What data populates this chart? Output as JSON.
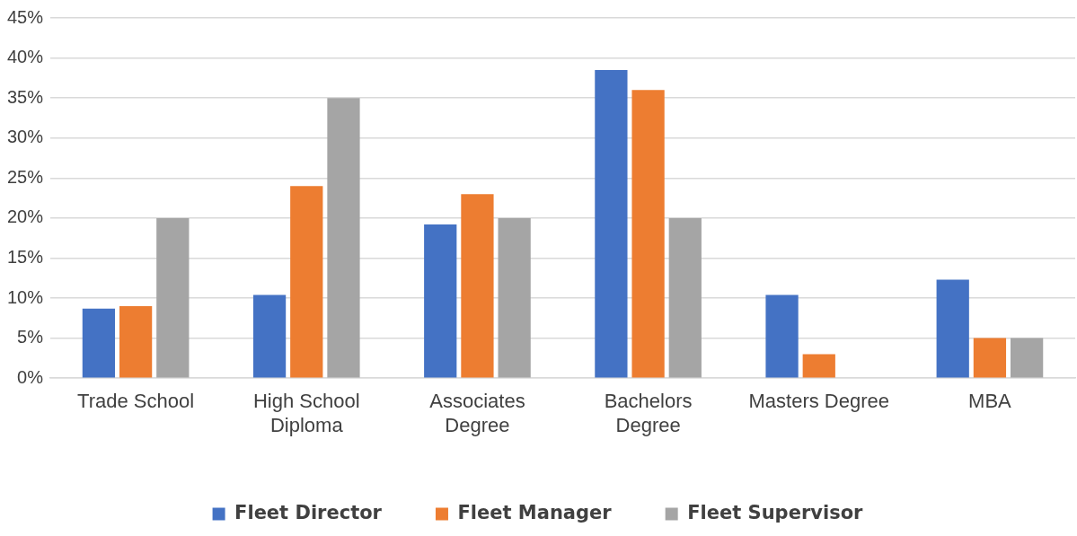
{
  "chart_data": {
    "type": "bar",
    "categories": [
      "Trade School",
      "High School Diploma",
      "Associates Degree",
      "Bachelors Degree",
      "Masters Degree",
      "MBA"
    ],
    "series": [
      {
        "name": "Fleet Director",
        "color": "#4472c4",
        "values": [
          8.7,
          10.4,
          19.2,
          38.5,
          10.4,
          12.3
        ]
      },
      {
        "name": "Fleet Manager",
        "color": "#ed7d31",
        "values": [
          9,
          24,
          23,
          36,
          3,
          5
        ]
      },
      {
        "name": "Fleet Supervisor",
        "color": "#a5a5a5",
        "values": [
          20,
          35,
          20,
          20,
          0,
          5
        ]
      }
    ],
    "ylim": [
      0,
      45
    ],
    "yticks": [
      {
        "value": 0,
        "label": "0%"
      },
      {
        "value": 5,
        "label": "5%"
      },
      {
        "value": 10,
        "label": "10%"
      },
      {
        "value": 15,
        "label": "15%"
      },
      {
        "value": 20,
        "label": "20%"
      },
      {
        "value": 25,
        "label": "25%"
      },
      {
        "value": 30,
        "label": "30%"
      },
      {
        "value": 35,
        "label": "35%"
      },
      {
        "value": 40,
        "label": "40%"
      },
      {
        "value": 45,
        "label": "45%"
      }
    ],
    "grid": "y",
    "legend": "bottom"
  }
}
